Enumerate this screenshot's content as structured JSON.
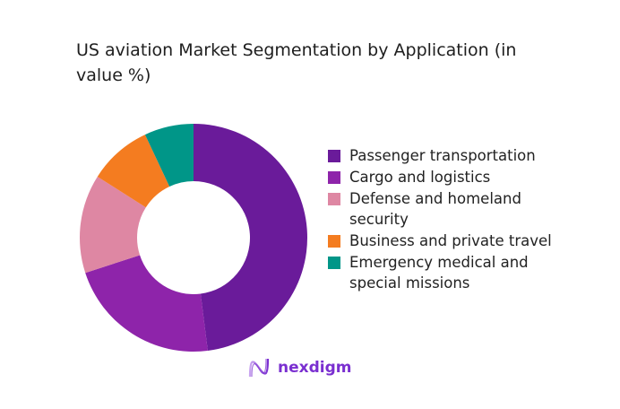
{
  "chart_data": {
    "type": "pie",
    "subtype": "donut",
    "title": "US aviation Market Segmentation by Application (in value %)",
    "categories": [
      "Passenger transportation",
      "Cargo and logistics",
      "Defense and homeland security",
      "Business and private travel",
      "Emergency medical and special missions"
    ],
    "values": [
      48,
      22,
      14,
      9,
      7
    ],
    "colors": [
      "#6a1b9a",
      "#8e24aa",
      "#de87a3",
      "#f47c20",
      "#009688"
    ],
    "legend_position": "right"
  },
  "logo": {
    "text": "nexdigm",
    "color": "#7a2fd0"
  }
}
